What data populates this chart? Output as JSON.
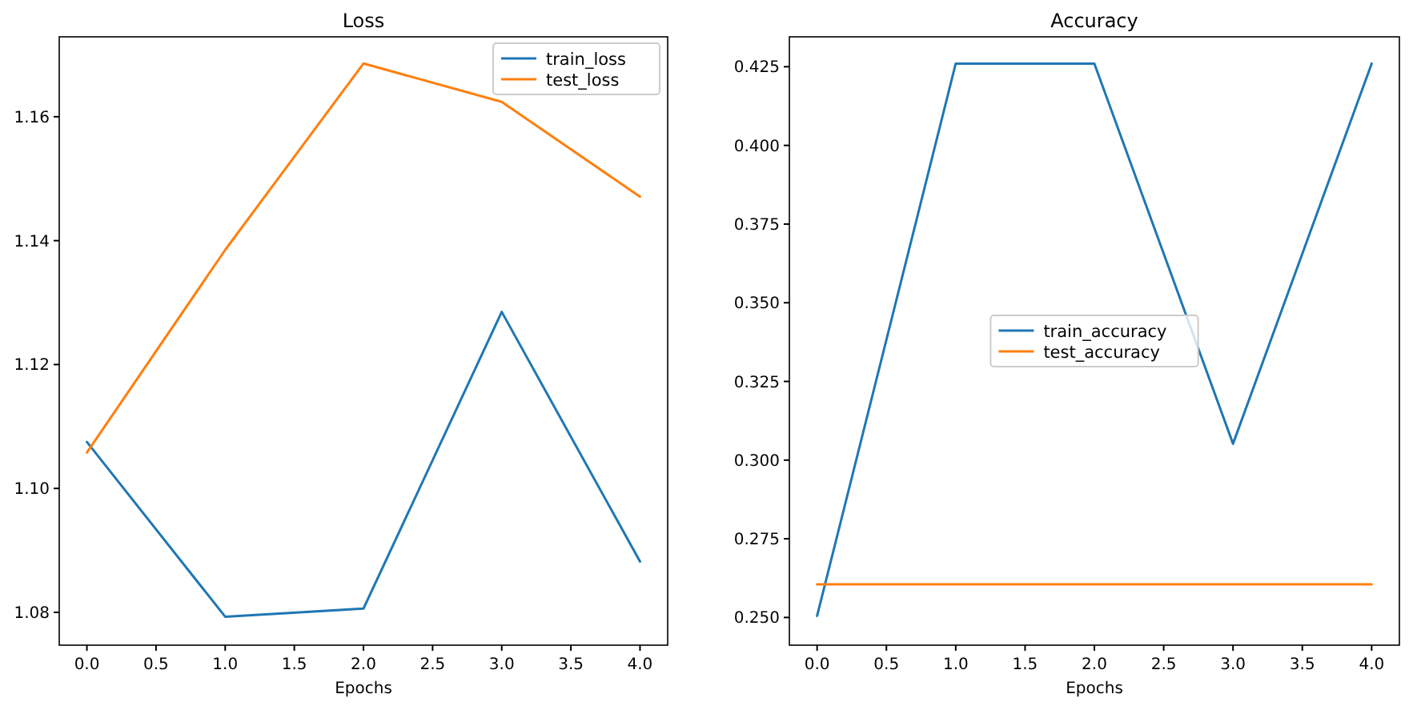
{
  "chart_data": [
    {
      "type": "line",
      "title": "Loss",
      "xlabel": "Epochs",
      "x": [
        0,
        1,
        2,
        3,
        4
      ],
      "xlim": [
        -0.2,
        4.2
      ],
      "xticks": [
        {
          "value": 0,
          "label": "0.0"
        },
        {
          "value": 0.5,
          "label": "0.5"
        },
        {
          "value": 1,
          "label": "1.0"
        },
        {
          "value": 1.5,
          "label": "1.5"
        },
        {
          "value": 2,
          "label": "2.0"
        },
        {
          "value": 2.5,
          "label": "2.5"
        },
        {
          "value": 3,
          "label": "3.0"
        },
        {
          "value": 3.5,
          "label": "3.5"
        },
        {
          "value": 4,
          "label": "4.0"
        }
      ],
      "ylim": [
        1.0747,
        1.1729
      ],
      "yticks": [
        {
          "value": 1.08,
          "label": "1.08"
        },
        {
          "value": 1.1,
          "label": "1.10"
        },
        {
          "value": 1.12,
          "label": "1.12"
        },
        {
          "value": 1.14,
          "label": "1.14"
        },
        {
          "value": 1.16,
          "label": "1.16"
        }
      ],
      "legend": "top right",
      "series": [
        {
          "name": "train_loss",
          "color": "#1f77b4",
          "values": [
            1.1075,
            1.0793,
            1.0806,
            1.1285,
            1.0882
          ]
        },
        {
          "name": "test_loss",
          "color": "#ff7f0e",
          "values": [
            1.1058,
            1.1385,
            1.1686,
            1.1624,
            1.1471
          ]
        }
      ]
    },
    {
      "type": "line",
      "title": "Accuracy",
      "xlabel": "Epochs",
      "x": [
        0,
        1,
        2,
        3,
        4
      ],
      "xlim": [
        -0.2,
        4.2
      ],
      "xticks": [
        {
          "value": 0,
          "label": "0.0"
        },
        {
          "value": 0.5,
          "label": "0.5"
        },
        {
          "value": 1,
          "label": "1.0"
        },
        {
          "value": 1.5,
          "label": "1.5"
        },
        {
          "value": 2,
          "label": "2.0"
        },
        {
          "value": 2.5,
          "label": "2.5"
        },
        {
          "value": 3,
          "label": "3.0"
        },
        {
          "value": 3.5,
          "label": "3.5"
        },
        {
          "value": 4,
          "label": "4.0"
        }
      ],
      "ylim": [
        0.2412,
        0.4345
      ],
      "yticks": [
        {
          "value": 0.25,
          "label": "0.250"
        },
        {
          "value": 0.275,
          "label": "0.275"
        },
        {
          "value": 0.3,
          "label": "0.300"
        },
        {
          "value": 0.325,
          "label": "0.325"
        },
        {
          "value": 0.35,
          "label": "0.350"
        },
        {
          "value": 0.375,
          "label": "0.375"
        },
        {
          "value": 0.4,
          "label": "0.400"
        },
        {
          "value": 0.425,
          "label": "0.425"
        }
      ],
      "legend": "center",
      "series": [
        {
          "name": "train_accuracy",
          "color": "#1f77b4",
          "values": [
            0.2505,
            0.426,
            0.426,
            0.3052,
            0.426
          ]
        },
        {
          "name": "test_accuracy",
          "color": "#ff7f0e",
          "values": [
            0.2605,
            0.2605,
            0.2605,
            0.2605,
            0.2605
          ]
        }
      ]
    }
  ]
}
